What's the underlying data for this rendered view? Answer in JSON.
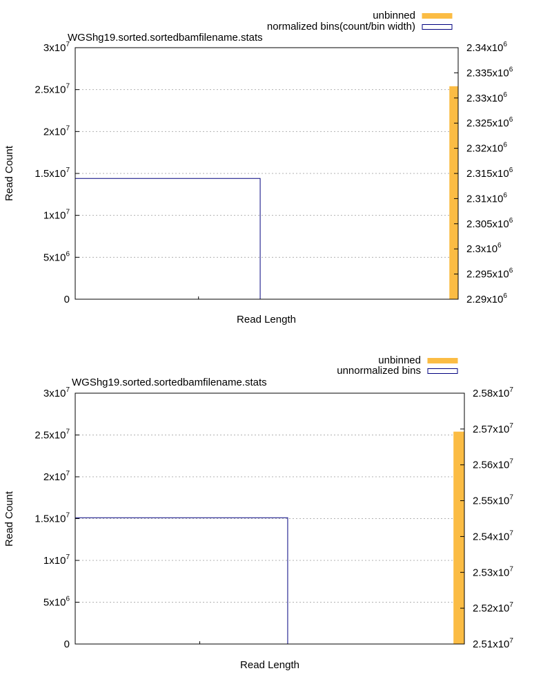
{
  "chart_data": [
    {
      "type": "bar",
      "title": "WGShg19.sorted.sortedbamfilename.stats",
      "xlabel": "Read Length",
      "ylabel": "Read Count",
      "ylim": [
        0,
        30000000
      ],
      "y2lim": [
        2290000,
        2340000
      ],
      "yticks": [
        {
          "value": 0,
          "mant": "0",
          "exp": ""
        },
        {
          "value": 5000000,
          "mant": "5x10",
          "exp": "6"
        },
        {
          "value": 10000000,
          "mant": "1x10",
          "exp": "7"
        },
        {
          "value": 15000000,
          "mant": "1.5x10",
          "exp": "7"
        },
        {
          "value": 20000000,
          "mant": "2x10",
          "exp": "7"
        },
        {
          "value": 25000000,
          "mant": "2.5x10",
          "exp": "7"
        },
        {
          "value": 30000000,
          "mant": "3x10",
          "exp": "7"
        }
      ],
      "y2ticks": [
        {
          "value": 2290000,
          "mant": "2.29x10",
          "exp": "6"
        },
        {
          "value": 2295000,
          "mant": "2.295x10",
          "exp": "6"
        },
        {
          "value": 2300000,
          "mant": "2.3x10",
          "exp": "6"
        },
        {
          "value": 2305000,
          "mant": "2.305x10",
          "exp": "6"
        },
        {
          "value": 2310000,
          "mant": "2.31x10",
          "exp": "6"
        },
        {
          "value": 2315000,
          "mant": "2.315x10",
          "exp": "6"
        },
        {
          "value": 2320000,
          "mant": "2.32x10",
          "exp": "6"
        },
        {
          "value": 2325000,
          "mant": "2.325x10",
          "exp": "6"
        },
        {
          "value": 2330000,
          "mant": "2.33x10",
          "exp": "6"
        },
        {
          "value": 2335000,
          "mant": "2.335x10",
          "exp": "6"
        },
        {
          "value": 2340000,
          "mant": "2.34x10",
          "exp": "6"
        }
      ],
      "x_range_fraction": {
        "bin_end": 0.483,
        "unbinned_start": 0.977
      },
      "series": [
        {
          "name": "unbinned",
          "style": "filled",
          "color": "#fbbc44",
          "value": 25400000
        },
        {
          "name": "normalized bins(count/bin width)",
          "style": "outline",
          "color": "#00007f",
          "value": 14400000
        }
      ],
      "grid": "horizontal-dotted",
      "legend": "top-right"
    },
    {
      "type": "bar",
      "title": "WGShg19.sorted.sortedbamfilename.stats",
      "xlabel": "Read Length",
      "ylabel": "Read Count",
      "ylim": [
        0,
        30000000
      ],
      "y2lim": [
        25100000,
        25800000
      ],
      "yticks": [
        {
          "value": 0,
          "mant": "0",
          "exp": ""
        },
        {
          "value": 5000000,
          "mant": "5x10",
          "exp": "6"
        },
        {
          "value": 10000000,
          "mant": "1x10",
          "exp": "7"
        },
        {
          "value": 15000000,
          "mant": "1.5x10",
          "exp": "7"
        },
        {
          "value": 20000000,
          "mant": "2x10",
          "exp": "7"
        },
        {
          "value": 25000000,
          "mant": "2.5x10",
          "exp": "7"
        },
        {
          "value": 30000000,
          "mant": "3x10",
          "exp": "7"
        }
      ],
      "y2ticks": [
        {
          "value": 25100000,
          "mant": "2.51x10",
          "exp": "7"
        },
        {
          "value": 25200000,
          "mant": "2.52x10",
          "exp": "7"
        },
        {
          "value": 25300000,
          "mant": "2.53x10",
          "exp": "7"
        },
        {
          "value": 25400000,
          "mant": "2.54x10",
          "exp": "7"
        },
        {
          "value": 25500000,
          "mant": "2.55x10",
          "exp": "7"
        },
        {
          "value": 25600000,
          "mant": "2.56x10",
          "exp": "7"
        },
        {
          "value": 25700000,
          "mant": "2.57x10",
          "exp": "7"
        },
        {
          "value": 25800000,
          "mant": "2.58x10",
          "exp": "7"
        }
      ],
      "x_range_fraction": {
        "bin_end": 0.546,
        "unbinned_start": 0.972
      },
      "series": [
        {
          "name": "unbinned",
          "style": "filled",
          "color": "#fbbc44",
          "value": 25400000
        },
        {
          "name": "unnormalized bins",
          "style": "outline",
          "color": "#00007f",
          "value": 15100000
        }
      ],
      "grid": "horizontal-dotted",
      "legend": "top-right"
    }
  ]
}
